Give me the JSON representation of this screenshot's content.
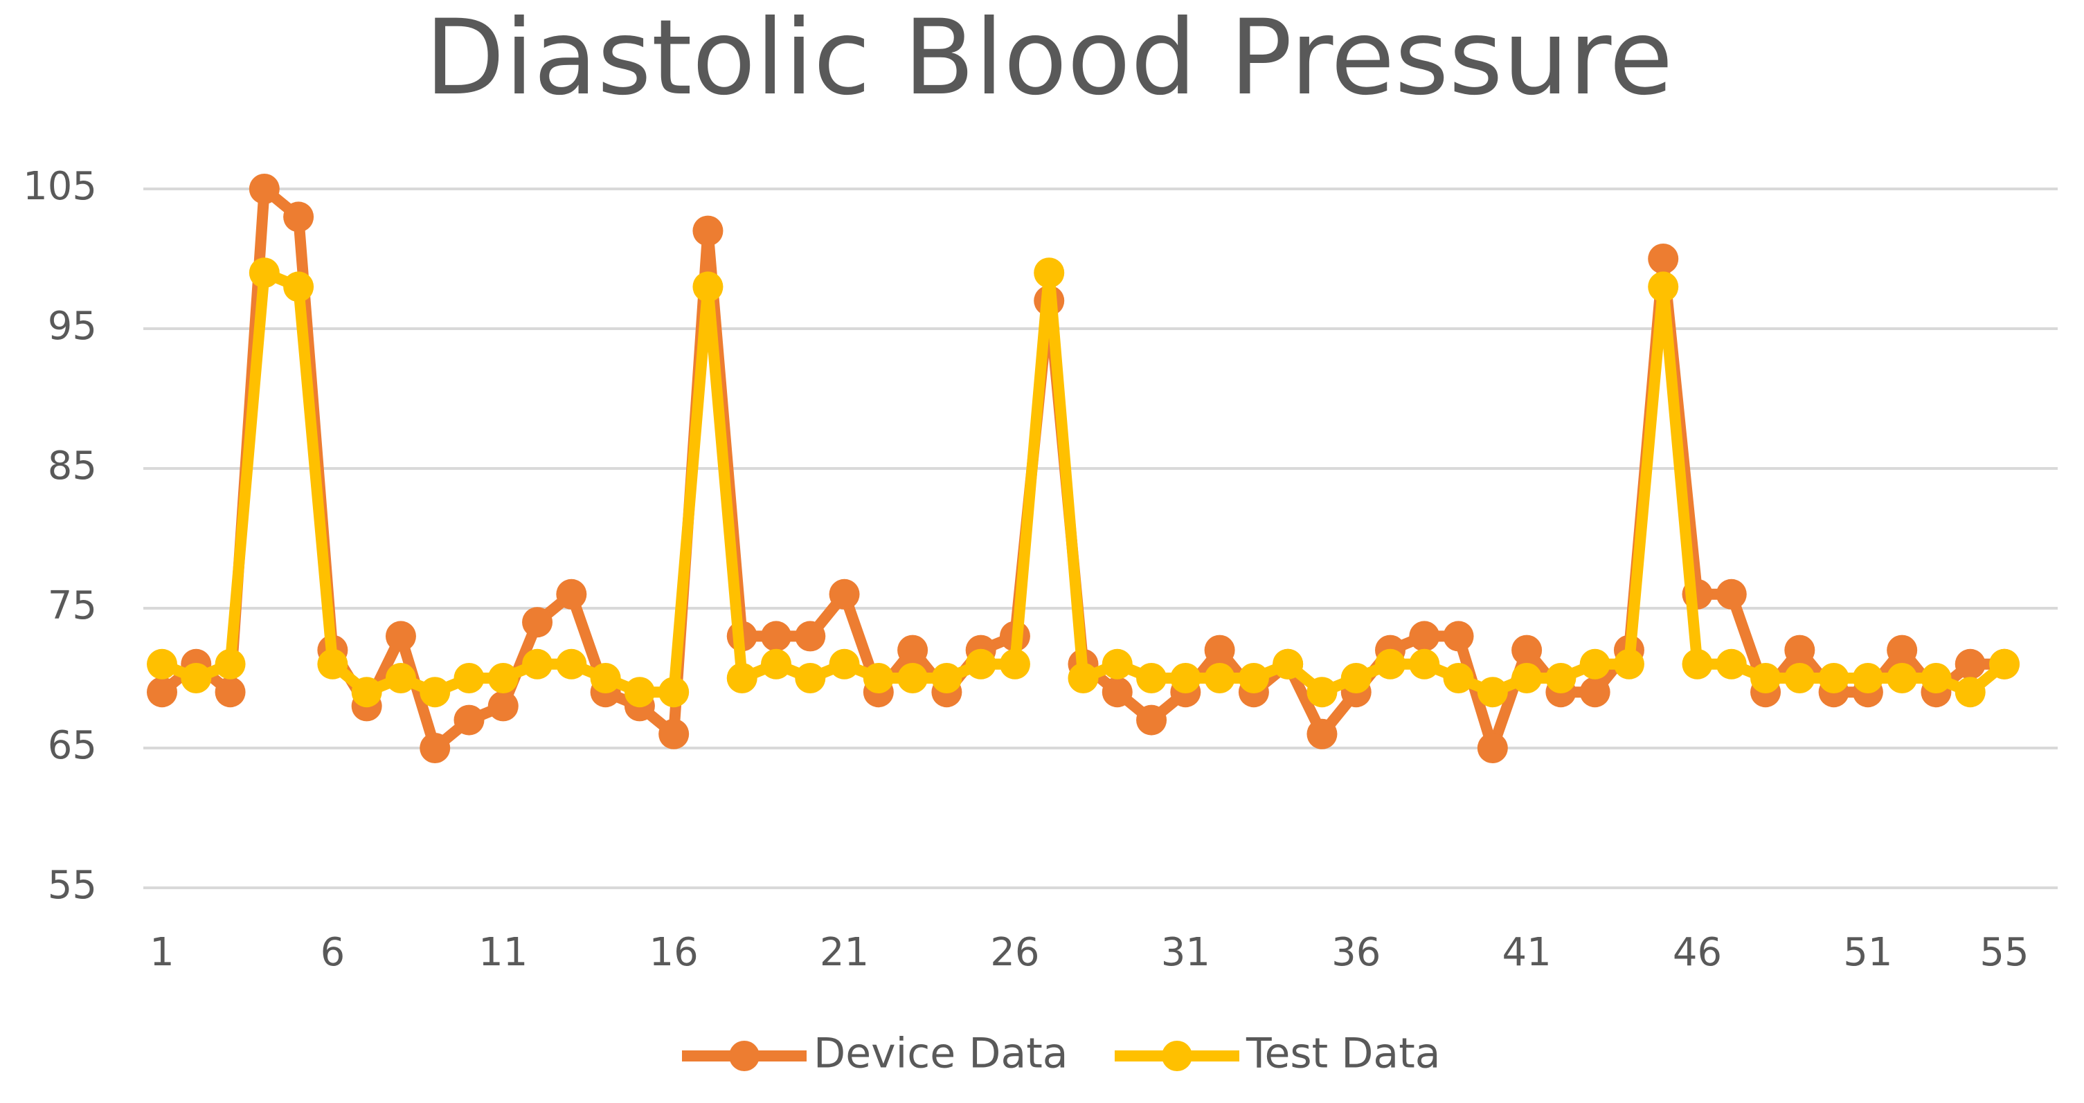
{
  "chart_data": {
    "type": "line",
    "title": "Diastolic Blood Pressure",
    "x": [
      1,
      2,
      3,
      4,
      5,
      6,
      7,
      8,
      9,
      10,
      11,
      12,
      13,
      14,
      15,
      16,
      17,
      18,
      19,
      20,
      21,
      22,
      23,
      24,
      25,
      26,
      27,
      28,
      29,
      30,
      31,
      32,
      33,
      34,
      35,
      36,
      37,
      38,
      39,
      40,
      41,
      42,
      43,
      44,
      45,
      46,
      47,
      48,
      49,
      50,
      51,
      52,
      53,
      54,
      55
    ],
    "series": [
      {
        "name": "Device Data",
        "color": "#ed7d31",
        "values": [
          69,
          71,
          69,
          105,
          103,
          72,
          68,
          73,
          65,
          67,
          68,
          74,
          76,
          69,
          68,
          66,
          102,
          73,
          73,
          73,
          76,
          69,
          72,
          69,
          72,
          73,
          97,
          71,
          69,
          67,
          69,
          72,
          69,
          71,
          66,
          69,
          72,
          73,
          73,
          65,
          72,
          69,
          69,
          72,
          100,
          76,
          76,
          69,
          72,
          69,
          69,
          72,
          69,
          71,
          71
        ]
      },
      {
        "name": "Test Data",
        "color": "#ffc000",
        "values": [
          71,
          70,
          71,
          99,
          98,
          71,
          69,
          70,
          69,
          70,
          70,
          71,
          71,
          70,
          69,
          69,
          98,
          70,
          71,
          70,
          71,
          70,
          70,
          70,
          71,
          71,
          99,
          70,
          71,
          70,
          70,
          70,
          70,
          71,
          69,
          70,
          71,
          71,
          70,
          69,
          70,
          70,
          71,
          71,
          98,
          71,
          71,
          70,
          70,
          70,
          70,
          70,
          70,
          69,
          71
        ]
      }
    ],
    "xlim": [
      1,
      55
    ],
    "xticks": [
      1,
      6,
      11,
      16,
      21,
      26,
      31,
      36,
      41,
      46,
      51,
      55
    ],
    "ylim": [
      55,
      105
    ],
    "yticks": [
      55,
      65,
      75,
      85,
      95,
      105
    ],
    "grid": true,
    "legend": "bottom"
  }
}
